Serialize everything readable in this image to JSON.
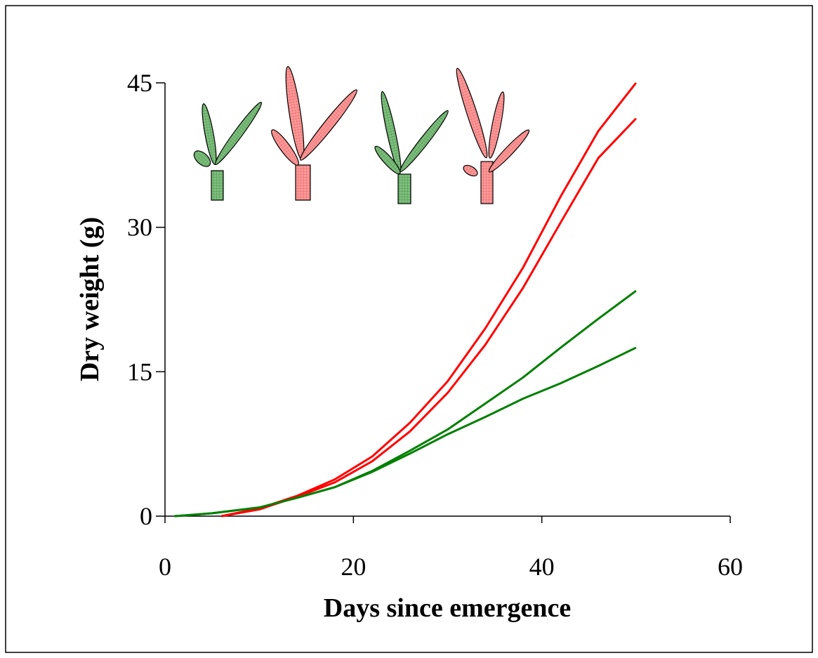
{
  "chart_data": {
    "type": "line",
    "xlabel": "Days since emergence",
    "ylabel": "Dry weight (g)",
    "xlim": [
      0,
      60
    ],
    "xticks": [
      0,
      20,
      40,
      60
    ],
    "ylim": [
      0,
      45
    ],
    "yticks": [
      0,
      15,
      30,
      45
    ],
    "series": [
      {
        "color": "#ff0000",
        "x": [
          6,
          10,
          14,
          18,
          22,
          26,
          30,
          34,
          38,
          42,
          46,
          50
        ],
        "values": [
          0,
          0.8,
          2.1,
          3.8,
          6.2,
          9.7,
          14.0,
          19.5,
          25.8,
          33.2,
          40.0,
          45.0
        ]
      },
      {
        "color": "#ff0000",
        "x": [
          6,
          10,
          14,
          18,
          22,
          26,
          30,
          34,
          38,
          42,
          46,
          50
        ],
        "values": [
          0,
          0.7,
          2.0,
          3.5,
          5.7,
          8.8,
          12.8,
          17.8,
          23.7,
          30.5,
          37.2,
          41.3
        ]
      },
      {
        "color": "#008000",
        "x": [
          1,
          5,
          10,
          14,
          18,
          22,
          26,
          30,
          34,
          38,
          42,
          46,
          50
        ],
        "values": [
          0,
          0.3,
          0.9,
          1.9,
          3.0,
          4.7,
          6.8,
          9.0,
          11.7,
          14.4,
          17.5,
          20.5,
          23.4
        ]
      },
      {
        "color": "#008000",
        "x": [
          1,
          5,
          10,
          14,
          18,
          22,
          26,
          30,
          34,
          38,
          42,
          46,
          50
        ],
        "values": [
          0,
          0.3,
          0.9,
          1.9,
          3.0,
          4.6,
          6.5,
          8.5,
          10.3,
          12.2,
          13.8,
          15.6,
          17.5
        ]
      }
    ]
  }
}
